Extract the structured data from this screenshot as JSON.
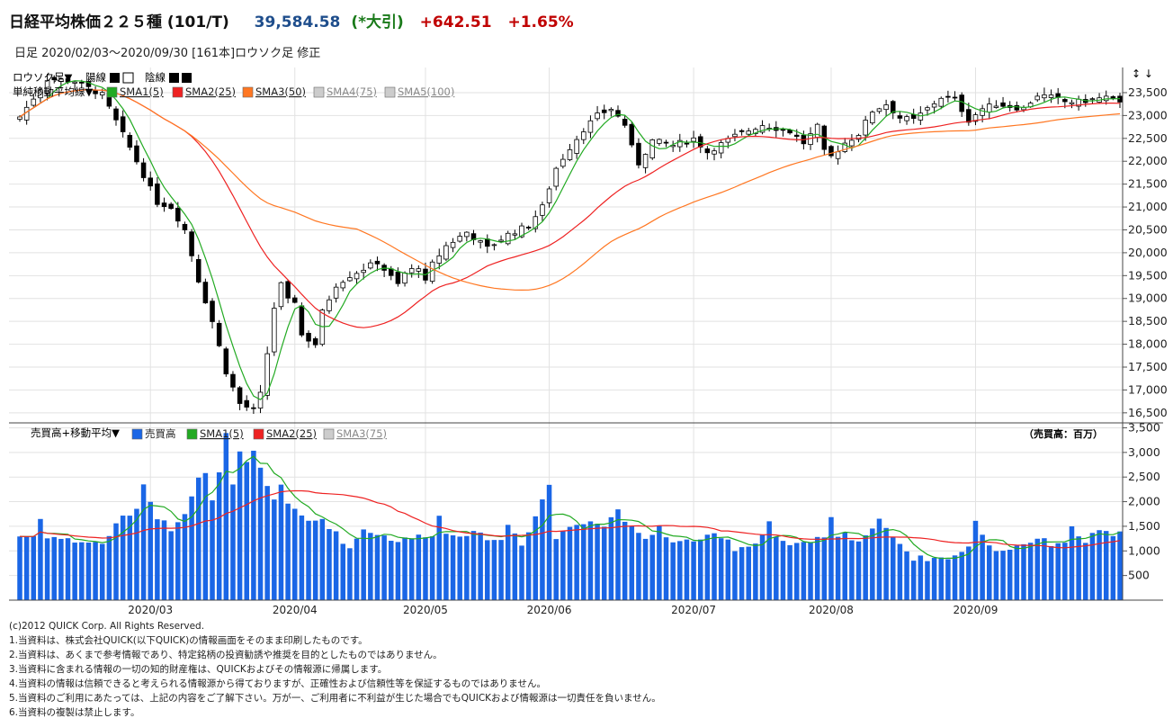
{
  "header": {
    "name": "日経平均株価２２５種 (101/T)",
    "price": "39,584.58",
    "flag": "(*大引)",
    "change": "+642.51",
    "change_pct": "+1.65%"
  },
  "subheader": {
    "text": "日足  2020/02/03〜2020/09/30 [161本]ロウソク足 修正"
  },
  "legend": {
    "candle_label": "ロウソク足▼",
    "up_label": "陽線",
    "down_label": "陰線",
    "ma_label": "単純移動平均線▼",
    "sma": [
      "SMA1(5)",
      "SMA2(25)",
      "SMA3(50)",
      "SMA4(75)",
      "SMA5(100)"
    ],
    "sma_colors": [
      "#22aa22",
      "#ee2222",
      "#ff7722",
      "#cccccc",
      "#cccccc"
    ],
    "zoom_arrows": "↕ ↓"
  },
  "volume_legend": {
    "label": "売買高+移動平均▼",
    "items": [
      "売買高",
      "SMA1(5)",
      "SMA2(25)",
      "SMA3(75)"
    ],
    "colors": [
      "#1a66e6",
      "#22aa22",
      "#ee2222",
      "#cccccc"
    ],
    "unit": "（売買高：百万）"
  },
  "chart_data": [
    {
      "type": "candlestick",
      "title": "日経平均株価２２５種 (101/T)",
      "y_ticks": [
        16500,
        17000,
        17500,
        18000,
        18500,
        19000,
        19500,
        20000,
        20500,
        21000,
        21500,
        22000,
        22500,
        23000,
        23500
      ],
      "y_tick_labels": [
        "16,500",
        "17,000",
        "17,500",
        "18,000",
        "18,500",
        "19,000",
        "19,500",
        "20,000",
        "20,500",
        "21,000",
        "21,500",
        "22,000",
        "22,500",
        "23,000",
        "23,500"
      ],
      "ylim": [
        16300,
        24050
      ],
      "x_tick_labels": [
        "2020/03",
        "2020/04",
        "2020/05",
        "2020/06",
        "2020/07",
        "2020/08",
        "2020/09"
      ],
      "x_tick_index": [
        19,
        40,
        59,
        77,
        98,
        118,
        139
      ],
      "bar_count": 161,
      "grid": true,
      "close_waypoints": [
        [
          0,
          22970
        ],
        [
          4,
          23800
        ],
        [
          8,
          23750
        ],
        [
          12,
          23450
        ],
        [
          16,
          22300
        ],
        [
          20,
          21100
        ],
        [
          22,
          21000
        ],
        [
          24,
          20500
        ],
        [
          26,
          19400
        ],
        [
          28,
          18500
        ],
        [
          30,
          17400
        ],
        [
          32,
          16700
        ],
        [
          34,
          16550
        ],
        [
          35,
          16900
        ],
        [
          36,
          17800
        ],
        [
          37,
          18800
        ],
        [
          38,
          19300
        ],
        [
          39,
          18950
        ],
        [
          40,
          18950
        ],
        [
          41,
          18200
        ],
        [
          43,
          18000
        ],
        [
          44,
          18700
        ],
        [
          46,
          19300
        ],
        [
          48,
          19500
        ],
        [
          50,
          19650
        ],
        [
          52,
          19800
        ],
        [
          55,
          19300
        ],
        [
          56,
          19550
        ],
        [
          58,
          19700
        ],
        [
          59,
          19350
        ],
        [
          60,
          19750
        ],
        [
          62,
          20150
        ],
        [
          65,
          20450
        ],
        [
          68,
          20100
        ],
        [
          71,
          20400
        ],
        [
          74,
          20600
        ],
        [
          76,
          21000
        ],
        [
          78,
          21850
        ],
        [
          80,
          22300
        ],
        [
          82,
          22700
        ],
        [
          84,
          23000
        ],
        [
          86,
          23150
        ],
        [
          88,
          22800
        ],
        [
          89,
          22300
        ],
        [
          90,
          21950
        ],
        [
          92,
          22450
        ],
        [
          95,
          22350
        ],
        [
          98,
          22500
        ],
        [
          100,
          22200
        ],
        [
          104,
          22550
        ],
        [
          108,
          22800
        ],
        [
          112,
          22650
        ],
        [
          114,
          22400
        ],
        [
          116,
          22750
        ],
        [
          117,
          22200
        ],
        [
          118,
          22100
        ],
        [
          120,
          22400
        ],
        [
          122,
          22600
        ],
        [
          124,
          23100
        ],
        [
          126,
          23250
        ],
        [
          128,
          22950
        ],
        [
          130,
          22900
        ],
        [
          132,
          23150
        ],
        [
          134,
          23400
        ],
        [
          136,
          23350
        ],
        [
          138,
          22900
        ],
        [
          140,
          23150
        ],
        [
          142,
          23250
        ],
        [
          144,
          23200
        ],
        [
          146,
          23150
        ],
        [
          148,
          23450
        ],
        [
          150,
          23400
        ],
        [
          152,
          23300
        ],
        [
          154,
          23300
        ],
        [
          156,
          23350
        ],
        [
          158,
          23400
        ],
        [
          160,
          23250
        ]
      ]
    },
    {
      "type": "bar",
      "title": "売買高",
      "unit": "百万",
      "y_ticks": [
        500,
        1000,
        1500,
        2000,
        2500,
        3000,
        3500
      ],
      "y_tick_labels": [
        "500",
        "1,000",
        "1,500",
        "2,000",
        "2,500",
        "3,000",
        "3,500"
      ],
      "ylim": [
        0,
        3600
      ],
      "volume_waypoints": [
        [
          0,
          1300
        ],
        [
          2,
          1300
        ],
        [
          3,
          1650
        ],
        [
          4,
          1300
        ],
        [
          8,
          1200
        ],
        [
          12,
          1150
        ],
        [
          15,
          1700
        ],
        [
          17,
          1800
        ],
        [
          18,
          2400
        ],
        [
          19,
          2000
        ],
        [
          20,
          1700
        ],
        [
          22,
          1450
        ],
        [
          24,
          1800
        ],
        [
          26,
          2500
        ],
        [
          27,
          2550
        ],
        [
          28,
          2000
        ],
        [
          29,
          2550
        ],
        [
          30,
          3450
        ],
        [
          31,
          2300
        ],
        [
          32,
          3000
        ],
        [
          33,
          2750
        ],
        [
          34,
          3000
        ],
        [
          35,
          2650
        ],
        [
          36,
          2300
        ],
        [
          37,
          2050
        ],
        [
          38,
          2350
        ],
        [
          39,
          2000
        ],
        [
          40,
          1800
        ],
        [
          42,
          1600
        ],
        [
          44,
          1650
        ],
        [
          46,
          1350
        ],
        [
          48,
          1050
        ],
        [
          50,
          1450
        ],
        [
          52,
          1350
        ],
        [
          55,
          1200
        ],
        [
          58,
          1300
        ],
        [
          60,
          1350
        ],
        [
          61,
          1700
        ],
        [
          62,
          1350
        ],
        [
          66,
          1350
        ],
        [
          70,
          1200
        ],
        [
          71,
          1550
        ],
        [
          73,
          1150
        ],
        [
          75,
          1700
        ],
        [
          76,
          2050
        ],
        [
          77,
          2350
        ],
        [
          78,
          1250
        ],
        [
          80,
          1500
        ],
        [
          83,
          1650
        ],
        [
          85,
          1500
        ],
        [
          87,
          1850
        ],
        [
          89,
          1450
        ],
        [
          91,
          1200
        ],
        [
          93,
          1500
        ],
        [
          95,
          1150
        ],
        [
          97,
          1200
        ],
        [
          99,
          1250
        ],
        [
          101,
          1300
        ],
        [
          103,
          1200
        ],
        [
          104,
          1050
        ],
        [
          107,
          1150
        ],
        [
          109,
          1600
        ],
        [
          110,
          1300
        ],
        [
          112,
          1100
        ],
        [
          115,
          1150
        ],
        [
          117,
          1300
        ],
        [
          118,
          1650
        ],
        [
          119,
          1250
        ],
        [
          120,
          1350
        ],
        [
          122,
          1200
        ],
        [
          125,
          1600
        ],
        [
          126,
          1500
        ],
        [
          128,
          1150
        ],
        [
          130,
          850
        ],
        [
          134,
          850
        ],
        [
          136,
          900
        ],
        [
          138,
          1050
        ],
        [
          139,
          1650
        ],
        [
          140,
          1300
        ],
        [
          142,
          1000
        ],
        [
          144,
          1050
        ],
        [
          146,
          1150
        ],
        [
          148,
          1250
        ],
        [
          150,
          1150
        ],
        [
          152,
          1200
        ],
        [
          153,
          1450
        ],
        [
          155,
          1200
        ],
        [
          157,
          1450
        ],
        [
          159,
          1250
        ],
        [
          160,
          1400
        ]
      ]
    }
  ],
  "footer": {
    "lines": [
      "(c)2012 QUICK Corp. All Rights Reserved.",
      "1.当資料は、株式会社QUICK(以下QUICK)の情報画面をそのまま印刷したものです。",
      "2.当資料は、あくまで参考情報であり、特定銘柄の投資勧誘や推奨を目的としたものではありません。",
      "3.当資料に含まれる情報の一切の知的財産権は、QUICKおよびその情報源に帰属します。",
      "4.当資料の情報は信頼できると考えられる情報源から得ておりますが、正確性および信頼性等を保証するものではありません。",
      "5.当資料のご利用にあたっては、上記の内容をご了解下さい。万が一、ご利用者に不利益が生じた場合でもQUICKおよび情報源は一切責任を負いません。",
      "6.当資料の複製は禁止します。"
    ]
  }
}
